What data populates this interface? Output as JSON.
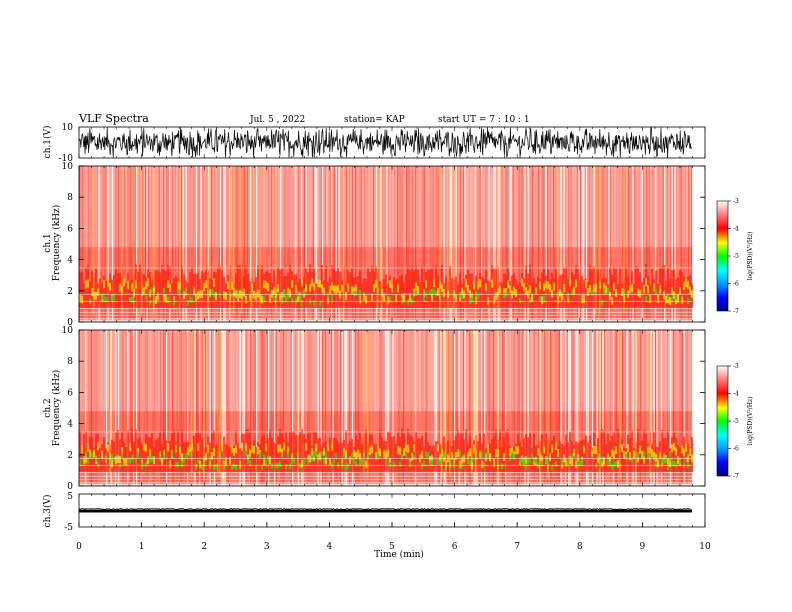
{
  "header": {
    "title": "VLF Spectra",
    "date": "Jul. 5 , 2022",
    "station": "station= KAP",
    "start": "start UT = 7 : 10 : 1"
  },
  "colors": {
    "spectrogram_background": "#ffffff",
    "low_power": "#ff3a2a",
    "mid_power": "#ffd200",
    "high_power": "#44d000",
    "colormap": [
      "#000080",
      "#0000ff",
      "#00a0ff",
      "#00ffff",
      "#00ff00",
      "#ffff00",
      "#ff0000",
      "#ff8080",
      "#ffffff"
    ]
  },
  "chart_data": [
    {
      "type": "line",
      "name": "waveform-ch1",
      "ylabel": "ch.1(V)",
      "ylim": [
        -10,
        10
      ],
      "ytick_labels": [
        "10",
        "-10"
      ],
      "xlim": [
        0,
        10
      ]
    },
    {
      "type": "heatmap",
      "name": "spectrogram-ch1",
      "ylabel": "ch.1\nFrequency (kHz)",
      "ylabel_line1": "ch.1",
      "ylabel_line2": "Frequency (kHz)",
      "ylim": [
        0,
        10
      ],
      "ytick_labels": [
        "0",
        "2",
        "4",
        "6",
        "8",
        "10"
      ],
      "xlim": [
        0,
        10
      ],
      "colorbar": {
        "label": "log(PSD)(V²/Hz)",
        "range": [
          -7,
          -3
        ],
        "tick_labels": [
          "-3",
          "-4",
          "-5",
          "-6",
          "-7"
        ]
      }
    },
    {
      "type": "heatmap",
      "name": "spectrogram-ch2",
      "ylabel": "ch.2\nFrequency (kHz)",
      "ylabel_line1": "ch.2",
      "ylabel_line2": "Frequency (kHz)",
      "ylim": [
        0,
        10
      ],
      "ytick_labels": [
        "0",
        "2",
        "4",
        "6",
        "8",
        "10"
      ],
      "xlim": [
        0,
        10
      ],
      "colorbar": {
        "label": "log(PSD)(V²/Hz)",
        "range": [
          -7,
          -3
        ],
        "tick_labels": [
          "-3",
          "-4",
          "-5",
          "-6",
          "-7"
        ]
      }
    },
    {
      "type": "line",
      "name": "waveform-ch3",
      "ylabel": "ch.3(V)",
      "ylim": [
        -5,
        5
      ],
      "ytick_labels": [
        "5",
        "-5"
      ],
      "xlim": [
        0,
        10
      ],
      "xlabel": "Time (min)",
      "xtick_labels": [
        "0",
        "1",
        "2",
        "3",
        "4",
        "5",
        "6",
        "7",
        "8",
        "9",
        "10"
      ]
    }
  ]
}
